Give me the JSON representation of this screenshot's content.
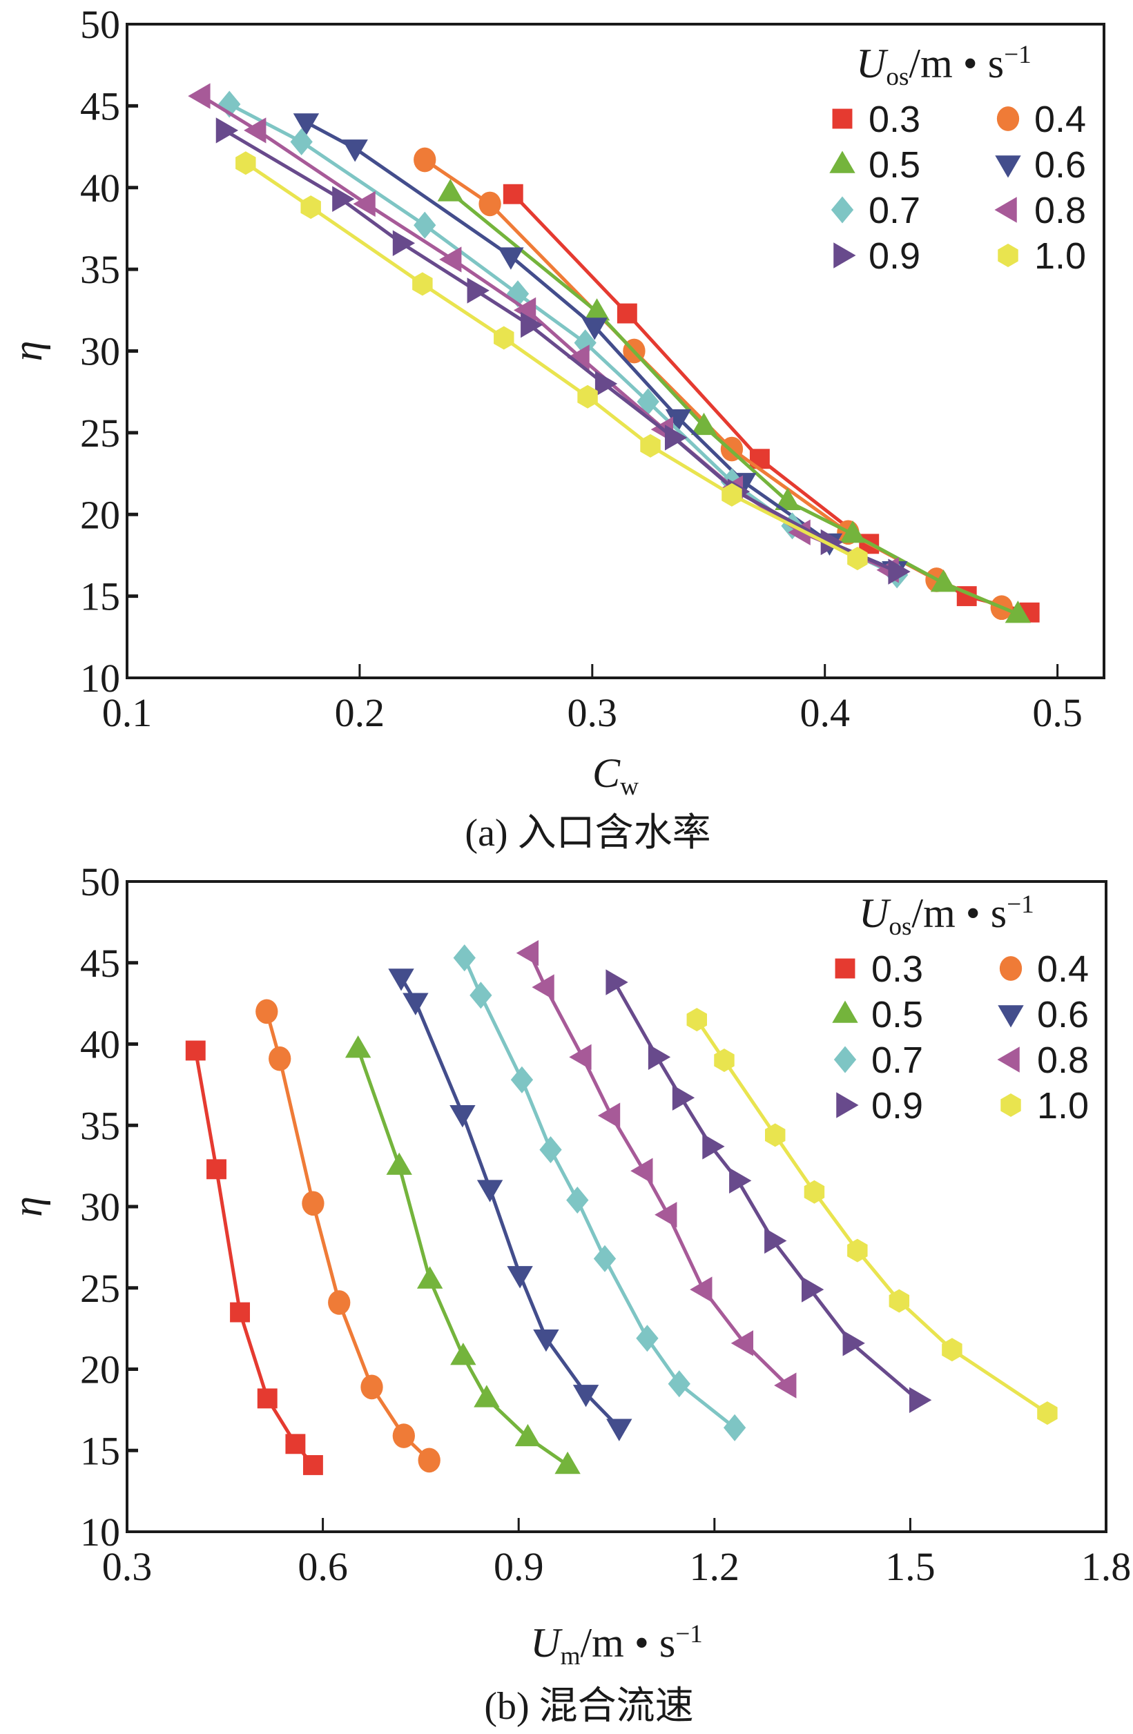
{
  "colors": {
    "0.3": "#e53a30",
    "0.4": "#ef7b37",
    "0.5": "#74b43c",
    "0.6": "#434d8c",
    "0.7": "#7ec5c4",
    "0.8": "#a75a98",
    "0.9": "#684a8c",
    "1.0": "#e9e44f"
  },
  "markers": {
    "0.3": "square",
    "0.4": "circle",
    "0.5": "triangle-up",
    "0.6": "triangle-down",
    "0.7": "diamond",
    "0.8": "triangle-left",
    "0.9": "triangle-right",
    "1.0": "hexagon"
  },
  "chart_data": [
    {
      "type": "line",
      "caption": "(a) 入口含水率",
      "xlabel": {
        "var": "C",
        "sub": "w"
      },
      "ylabel": "η",
      "xlim": [
        0.1,
        0.52
      ],
      "ylim": [
        10,
        50
      ],
      "xticks": [
        "0.1",
        "0.2",
        "0.3",
        "0.4",
        "0.5"
      ],
      "yticks": [
        "10",
        "15",
        "20",
        "25",
        "30",
        "35",
        "40",
        "45",
        "50"
      ],
      "legend": {
        "placement": "top-right",
        "title": {
          "var": "U",
          "sub": "os",
          "unit": "/m • s",
          "sup": "−1"
        }
      },
      "series": [
        {
          "name": "0.3",
          "points": [
            [
              0.266,
              39.6
            ],
            [
              0.315,
              32.3
            ],
            [
              0.372,
              23.4
            ],
            [
              0.419,
              18.2
            ],
            [
              0.461,
              15.0
            ],
            [
              0.488,
              14.0
            ]
          ]
        },
        {
          "name": "0.4",
          "points": [
            [
              0.228,
              41.7
            ],
            [
              0.256,
              39.0
            ],
            [
              0.318,
              30.0
            ],
            [
              0.36,
              24.0
            ],
            [
              0.41,
              18.9
            ],
            [
              0.448,
              16.0
            ],
            [
              0.476,
              14.3
            ]
          ]
        },
        {
          "name": "0.5",
          "points": [
            [
              0.239,
              39.7
            ],
            [
              0.302,
              32.4
            ],
            [
              0.348,
              25.4
            ],
            [
              0.384,
              20.8
            ],
            [
              0.412,
              18.8
            ],
            [
              0.451,
              15.8
            ],
            [
              0.483,
              13.9
            ]
          ]
        },
        {
          "name": "0.6",
          "points": [
            [
              0.177,
              44.0
            ],
            [
              0.198,
              42.4
            ],
            [
              0.265,
              35.8
            ],
            [
              0.301,
              31.5
            ],
            [
              0.337,
              25.9
            ],
            [
              0.365,
              22.0
            ],
            [
              0.402,
              18.3
            ],
            [
              0.43,
              16.6
            ]
          ]
        },
        {
          "name": "0.7",
          "points": [
            [
              0.144,
              45.1
            ],
            [
              0.175,
              42.8
            ],
            [
              0.228,
              37.7
            ],
            [
              0.268,
              33.5
            ],
            [
              0.297,
              30.5
            ],
            [
              0.324,
              26.9
            ],
            [
              0.36,
              22.0
            ],
            [
              0.386,
              19.3
            ],
            [
              0.431,
              16.3
            ]
          ]
        },
        {
          "name": "0.8",
          "points": [
            [
              0.132,
              45.6
            ],
            [
              0.156,
              43.5
            ],
            [
              0.203,
              39.0
            ],
            [
              0.24,
              35.6
            ],
            [
              0.272,
              32.5
            ],
            [
              0.295,
              29.6
            ],
            [
              0.331,
              25.2
            ],
            [
              0.361,
              21.6
            ],
            [
              0.39,
              18.9
            ],
            [
              0.428,
              16.6
            ]
          ]
        },
        {
          "name": "0.9",
          "points": [
            [
              0.142,
              43.5
            ],
            [
              0.192,
              39.3
            ],
            [
              0.218,
              36.6
            ],
            [
              0.25,
              33.7
            ],
            [
              0.273,
              31.6
            ],
            [
              0.305,
              28.0
            ],
            [
              0.335,
              24.7
            ],
            [
              0.362,
              21.4
            ],
            [
              0.402,
              18.3
            ],
            [
              0.431,
              16.5
            ]
          ]
        },
        {
          "name": "1.0",
          "points": [
            [
              0.151,
              41.5
            ],
            [
              0.179,
              38.8
            ],
            [
              0.227,
              34.1
            ],
            [
              0.262,
              30.8
            ],
            [
              0.298,
              27.2
            ],
            [
              0.325,
              24.2
            ],
            [
              0.36,
              21.2
            ],
            [
              0.414,
              17.3
            ]
          ]
        }
      ]
    },
    {
      "type": "line",
      "caption": "(b) 混合流速",
      "xlabel": {
        "var": "U",
        "sub": "m",
        "unit": "/m • s",
        "sup": "−1"
      },
      "ylabel": "η",
      "xlim": [
        0.3,
        1.8
      ],
      "ylim": [
        10,
        50
      ],
      "xticks": [
        "0.3",
        "0.6",
        "0.9",
        "1.2",
        "1.5",
        "1.8"
      ],
      "yticks": [
        "10",
        "15",
        "20",
        "25",
        "30",
        "35",
        "40",
        "45",
        "50"
      ],
      "legend": {
        "placement": "top-right",
        "title": {
          "var": "U",
          "sub": "os",
          "unit": "/m • s",
          "sup": "−1"
        }
      },
      "series": [
        {
          "name": "0.3",
          "points": [
            [
              0.405,
              39.6
            ],
            [
              0.437,
              32.3
            ],
            [
              0.473,
              23.5
            ],
            [
              0.515,
              18.2
            ],
            [
              0.558,
              15.4
            ],
            [
              0.585,
              14.1
            ]
          ]
        },
        {
          "name": "0.4",
          "points": [
            [
              0.514,
              42.0
            ],
            [
              0.534,
              39.1
            ],
            [
              0.585,
              30.2
            ],
            [
              0.625,
              24.1
            ],
            [
              0.675,
              18.9
            ],
            [
              0.724,
              15.9
            ],
            [
              0.763,
              14.4
            ]
          ]
        },
        {
          "name": "0.5",
          "points": [
            [
              0.654,
              39.7
            ],
            [
              0.717,
              32.5
            ],
            [
              0.764,
              25.5
            ],
            [
              0.815,
              20.8
            ],
            [
              0.851,
              18.2
            ],
            [
              0.914,
              15.8
            ],
            [
              0.975,
              14.1
            ]
          ]
        },
        {
          "name": "0.6",
          "points": [
            [
              0.72,
              44.1
            ],
            [
              0.742,
              42.6
            ],
            [
              0.814,
              35.7
            ],
            [
              0.856,
              31.1
            ],
            [
              0.902,
              25.8
            ],
            [
              0.942,
              21.9
            ],
            [
              1.003,
              18.5
            ],
            [
              1.054,
              16.4
            ]
          ]
        },
        {
          "name": "0.7",
          "points": [
            [
              0.817,
              45.3
            ],
            [
              0.842,
              43.0
            ],
            [
              0.905,
              37.8
            ],
            [
              0.949,
              33.5
            ],
            [
              0.99,
              30.4
            ],
            [
              1.032,
              26.8
            ],
            [
              1.097,
              21.9
            ],
            [
              1.146,
              19.1
            ],
            [
              1.231,
              16.4
            ]
          ]
        },
        {
          "name": "0.8",
          "points": [
            [
              0.917,
              45.6
            ],
            [
              0.941,
              43.5
            ],
            [
              0.998,
              39.2
            ],
            [
              1.042,
              35.6
            ],
            [
              1.092,
              32.2
            ],
            [
              1.129,
              29.5
            ],
            [
              1.183,
              24.9
            ],
            [
              1.246,
              21.6
            ],
            [
              1.312,
              19.0
            ]
          ]
        },
        {
          "name": "0.9",
          "points": [
            [
              1.047,
              43.8
            ],
            [
              1.112,
              39.2
            ],
            [
              1.149,
              36.7
            ],
            [
              1.195,
              33.7
            ],
            [
              1.236,
              31.6
            ],
            [
              1.29,
              27.9
            ],
            [
              1.347,
              24.9
            ],
            [
              1.41,
              21.6
            ],
            [
              1.512,
              18.1
            ]
          ]
        },
        {
          "name": "1.0",
          "points": [
            [
              1.173,
              41.5
            ],
            [
              1.215,
              39.0
            ],
            [
              1.293,
              34.4
            ],
            [
              1.353,
              30.9
            ],
            [
              1.419,
              27.3
            ],
            [
              1.483,
              24.2
            ],
            [
              1.564,
              21.2
            ],
            [
              1.71,
              17.3
            ]
          ]
        }
      ]
    }
  ]
}
